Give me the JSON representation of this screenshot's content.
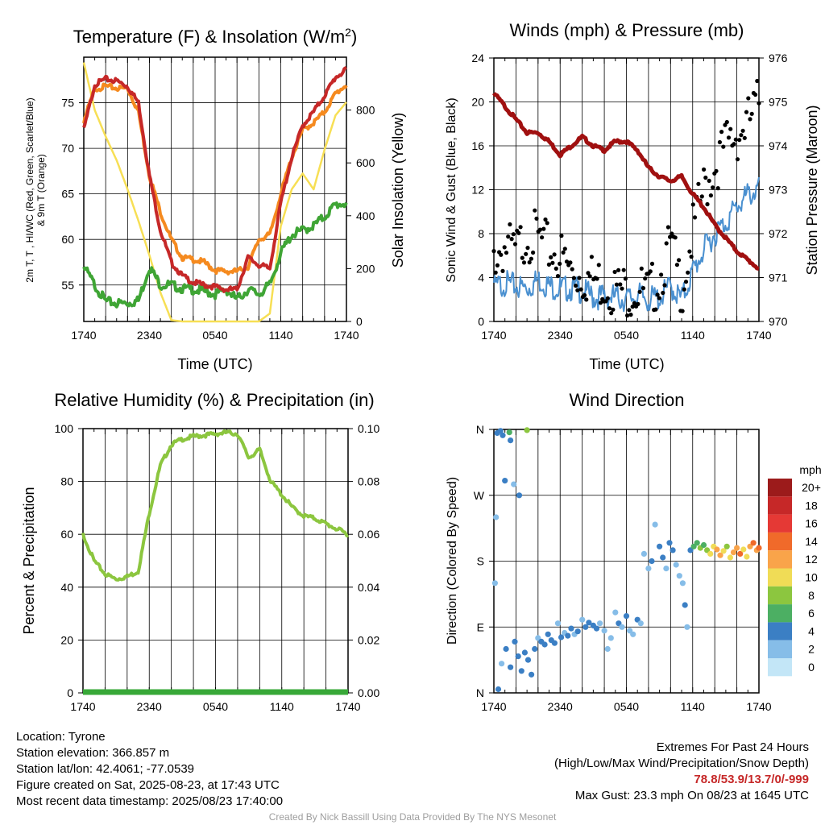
{
  "colors": {
    "temp_red": "#c62828",
    "dewpoint_green": "#3fa535",
    "hiwc_scarlet": "#d32f2f",
    "temp9m_orange": "#f58a1f",
    "solar_yellow": "#f7df55",
    "wind_blue": "#4a90d0",
    "gust_black": "#000000",
    "pressure_maroon": "#a01010",
    "rh_green": "#8cc63f",
    "precip_green": "#38a838"
  },
  "time_ticks": [
    "1740",
    "2340",
    "0540",
    "1140",
    "1740"
  ],
  "chart_data": [
    {
      "type": "line",
      "title": "Temperature (F) & Insolation (W/m²)",
      "title_main": "Temperature (F) & Insolation (W/m",
      "title_sup": "2",
      "title_end": ")",
      "xlabel": "Time (UTC)",
      "ylabel_line1": "2m T, T , HI/WC (Red, Green, Scarlet/Blue)",
      "ylabel_line2": "& 9m T (Orange)",
      "ylabel_right": "Solar Insolation (Yellow)",
      "ylim": [
        51,
        80
      ],
      "ylim_right": [
        0,
        1000
      ],
      "yticks": [
        55,
        60,
        65,
        70,
        75
      ],
      "yticks_right": [
        0,
        200,
        400,
        600,
        800
      ],
      "x": [
        0,
        1,
        2,
        3,
        4,
        5,
        6,
        7,
        8,
        9,
        10,
        11,
        12,
        13,
        14,
        15,
        16,
        17,
        18,
        19,
        20,
        21,
        22,
        23,
        24
      ],
      "series": [
        {
          "key": "solar",
          "values": [
            980,
            800,
            700,
            610,
            500,
            380,
            250,
            110,
            5,
            0,
            0,
            0,
            0,
            0,
            0,
            0,
            0,
            30,
            360,
            500,
            560,
            500,
            650,
            780,
            830
          ]
        },
        {
          "key": "temp9m",
          "values": [
            73,
            76.5,
            76.8,
            76.6,
            76.6,
            74,
            67,
            63,
            60,
            58,
            57.8,
            57.5,
            56.6,
            56.5,
            56.5,
            57,
            60,
            60.5,
            65,
            69,
            72,
            72.8,
            74,
            76,
            77
          ]
        },
        {
          "key": "dewpoint",
          "values": [
            57,
            55,
            53.2,
            53,
            53,
            53.3,
            57,
            55,
            55,
            54.6,
            54.5,
            54.3,
            54,
            54.5,
            53.4,
            54.5,
            54,
            55,
            58.5,
            60.5,
            61,
            61.5,
            62.5,
            63.8,
            64
          ]
        },
        {
          "key": "temp",
          "values": [
            72,
            77,
            77.6,
            77.4,
            76.8,
            75,
            67,
            61,
            57.5,
            56,
            55.3,
            55,
            54.8,
            54.5,
            54.5,
            58,
            57.2,
            56.8,
            64,
            69,
            72.5,
            74,
            75.8,
            77.8,
            78.6
          ]
        }
      ]
    },
    {
      "type": "line",
      "title": "Winds (mph) & Pressure (mb)",
      "xlabel": "Time (UTC)",
      "ylabel": "Sonic Wind & Gust (Blue, Black)",
      "ylabel_right": "Station Pressure (Maroon)",
      "ylim": [
        0,
        24
      ],
      "ylim_right": [
        970,
        976
      ],
      "yticks": [
        0,
        4,
        8,
        12,
        16,
        20,
        24
      ],
      "yticks_right": [
        970,
        971,
        972,
        973,
        974,
        975,
        976
      ],
      "x": [
        0,
        1,
        2,
        3,
        4,
        5,
        6,
        7,
        8,
        9,
        10,
        11,
        12,
        13,
        14,
        15,
        16,
        17,
        18,
        19,
        20,
        21,
        22,
        23,
        24
      ],
      "series": [
        {
          "key": "wind",
          "values": [
            3,
            3.5,
            3.2,
            3,
            3.8,
            3.2,
            3,
            3,
            2.8,
            2.2,
            2.3,
            2.2,
            2,
            2.4,
            2,
            2.2,
            3.2,
            2,
            4.5,
            6.5,
            8,
            9,
            10.5,
            11.5,
            12
          ]
        },
        {
          "key": "gust",
          "values": [
            6,
            6.8,
            6.2,
            8,
            7.5,
            6.5,
            6,
            4.5,
            4.2,
            3.8,
            3.5,
            3,
            2.8,
            3,
            2.4,
            4,
            7,
            3,
            8,
            12,
            14,
            16,
            17,
            18,
            20
          ]
        },
        {
          "key": "pressure",
          "values": [
            975.2,
            974.9,
            974.6,
            974.3,
            974.3,
            974.1,
            973.8,
            974.0,
            974.2,
            974.0,
            973.9,
            974.1,
            974.1,
            973.9,
            973.5,
            973.3,
            973.2,
            973.3,
            972.9,
            972.6,
            972.2,
            971.9,
            971.6,
            971.4,
            971.2
          ]
        }
      ]
    },
    {
      "type": "line",
      "title": "Relative Humidity (%) & Precipitation (in)",
      "xlabel": "",
      "ylabel": "Percent & Precipitation",
      "ylim": [
        0,
        100
      ],
      "ylim_right": [
        0,
        0.1
      ],
      "yticks": [
        0,
        20,
        40,
        60,
        80,
        100
      ],
      "yticks_right": [
        "0.00",
        "0.02",
        "0.04",
        "0.06",
        "0.08",
        "0.10"
      ],
      "x": [
        0,
        1,
        2,
        3,
        4,
        5,
        6,
        7,
        8,
        9,
        10,
        11,
        12,
        13,
        14,
        15,
        16,
        17,
        18,
        19,
        20,
        21,
        22,
        23,
        24
      ],
      "series": [
        {
          "key": "rh",
          "values": [
            60,
            50,
            45,
            43,
            44,
            46,
            68,
            86,
            94,
            96,
            97,
            97.5,
            98,
            98.5,
            98,
            89,
            92,
            80,
            75,
            70,
            67,
            66,
            64,
            62,
            60
          ]
        },
        {
          "key": "precip",
          "values": [
            0,
            0,
            0,
            0,
            0,
            0,
            0,
            0,
            0,
            0,
            0,
            0,
            0,
            0,
            0,
            0,
            0,
            0,
            0,
            0,
            0,
            0,
            0,
            0,
            0
          ]
        }
      ]
    },
    {
      "type": "scatter",
      "title": "Wind Direction",
      "xlabel": "",
      "ylabel": "Direction (Colored By Speed)",
      "yticks": [
        "N",
        "E",
        "S",
        "W",
        "N"
      ],
      "legend_title": "mph",
      "legend_labels": [
        "20+",
        "18",
        "16",
        "14",
        "12",
        "10",
        "8",
        "6",
        "4",
        "2",
        "0"
      ],
      "legend_colors": [
        "#9c1b1b",
        "#c62828",
        "#e53935",
        "#f06a2a",
        "#f9a44a",
        "#f0dc56",
        "#8cc63f",
        "#4caf63",
        "#3b7fc4",
        "#86bde8",
        "#c3e6f7"
      ],
      "points": [
        {
          "t": 0.3,
          "d": 355,
          "s": 4
        },
        {
          "t": 0.6,
          "d": 358,
          "s": 3
        },
        {
          "t": 0.8,
          "d": 352,
          "s": 4
        },
        {
          "t": 1.4,
          "d": 356,
          "s": 5
        },
        {
          "t": 1.5,
          "d": 345,
          "s": 3
        },
        {
          "t": 3.0,
          "d": 359,
          "s": 7
        },
        {
          "t": 1.0,
          "d": 290,
          "s": 3
        },
        {
          "t": 1.8,
          "d": 285,
          "s": 2
        },
        {
          "t": 2.3,
          "d": 270,
          "s": 3
        },
        {
          "t": 0.2,
          "d": 240,
          "s": 2
        },
        {
          "t": 0.1,
          "d": 150,
          "s": 2
        },
        {
          "t": 0.4,
          "d": 5,
          "s": 3
        },
        {
          "t": 0.7,
          "d": 40,
          "s": 2
        },
        {
          "t": 1.1,
          "d": 60,
          "s": 3
        },
        {
          "t": 1.5,
          "d": 35,
          "s": 4
        },
        {
          "t": 1.9,
          "d": 70,
          "s": 3
        },
        {
          "t": 2.2,
          "d": 50,
          "s": 4
        },
        {
          "t": 2.5,
          "d": 30,
          "s": 3
        },
        {
          "t": 2.8,
          "d": 55,
          "s": 4
        },
        {
          "t": 3.1,
          "d": 45,
          "s": 4
        },
        {
          "t": 3.4,
          "d": 25,
          "s": 4
        },
        {
          "t": 3.7,
          "d": 60,
          "s": 3
        },
        {
          "t": 4.0,
          "d": 75,
          "s": 2
        },
        {
          "t": 4.3,
          "d": 70,
          "s": 4
        },
        {
          "t": 4.6,
          "d": 66,
          "s": 4
        },
        {
          "t": 4.9,
          "d": 80,
          "s": 3
        },
        {
          "t": 5.2,
          "d": 72,
          "s": 4
        },
        {
          "t": 5.5,
          "d": 68,
          "s": 3
        },
        {
          "t": 5.8,
          "d": 95,
          "s": 2
        },
        {
          "t": 6.1,
          "d": 76,
          "s": 3
        },
        {
          "t": 6.4,
          "d": 82,
          "s": 2
        },
        {
          "t": 6.7,
          "d": 78,
          "s": 3
        },
        {
          "t": 7.0,
          "d": 88,
          "s": 3
        },
        {
          "t": 7.3,
          "d": 80,
          "s": 2
        },
        {
          "t": 7.6,
          "d": 84,
          "s": 3
        },
        {
          "t": 8.0,
          "d": 100,
          "s": 2
        },
        {
          "t": 8.3,
          "d": 90,
          "s": 3
        },
        {
          "t": 8.6,
          "d": 96,
          "s": 3
        },
        {
          "t": 9.0,
          "d": 92,
          "s": 4
        },
        {
          "t": 9.3,
          "d": 88,
          "s": 3
        },
        {
          "t": 9.6,
          "d": 95,
          "s": 2
        },
        {
          "t": 10.0,
          "d": 85,
          "s": 2
        },
        {
          "t": 10.3,
          "d": 60,
          "s": 1
        },
        {
          "t": 10.6,
          "d": 75,
          "s": 2
        },
        {
          "t": 11.0,
          "d": 110,
          "s": 2
        },
        {
          "t": 11.3,
          "d": 95,
          "s": 3
        },
        {
          "t": 11.6,
          "d": 90,
          "s": 2
        },
        {
          "t": 12.0,
          "d": 105,
          "s": 3
        },
        {
          "t": 12.3,
          "d": 85,
          "s": 2
        },
        {
          "t": 12.6,
          "d": 80,
          "s": 1
        },
        {
          "t": 13.0,
          "d": 100,
          "s": 3
        },
        {
          "t": 13.3,
          "d": 95,
          "s": 2
        },
        {
          "t": 13.6,
          "d": 190,
          "s": 2
        },
        {
          "t": 14.0,
          "d": 170,
          "s": 2
        },
        {
          "t": 14.3,
          "d": 180,
          "s": 3
        },
        {
          "t": 14.6,
          "d": 230,
          "s": 2
        },
        {
          "t": 15.0,
          "d": 200,
          "s": 3
        },
        {
          "t": 15.3,
          "d": 185,
          "s": 3
        },
        {
          "t": 15.6,
          "d": 170,
          "s": 2
        },
        {
          "t": 15.9,
          "d": 205,
          "s": 4
        },
        {
          "t": 16.2,
          "d": 195,
          "s": 3
        },
        {
          "t": 16.5,
          "d": 175,
          "s": 2
        },
        {
          "t": 16.8,
          "d": 160,
          "s": 2
        },
        {
          "t": 17.1,
          "d": 150,
          "s": 2
        },
        {
          "t": 17.3,
          "d": 120,
          "s": 3
        },
        {
          "t": 17.5,
          "d": 90,
          "s": 2
        },
        {
          "t": 17.8,
          "d": 195,
          "s": 4
        },
        {
          "t": 18.1,
          "d": 200,
          "s": 5
        },
        {
          "t": 18.4,
          "d": 205,
          "s": 6
        },
        {
          "t": 18.7,
          "d": 198,
          "s": 7
        },
        {
          "t": 19.0,
          "d": 202,
          "s": 6
        },
        {
          "t": 19.3,
          "d": 195,
          "s": 8
        },
        {
          "t": 19.6,
          "d": 190,
          "s": 9
        },
        {
          "t": 19.9,
          "d": 200,
          "s": 10
        },
        {
          "t": 20.2,
          "d": 196,
          "s": 11
        },
        {
          "t": 20.5,
          "d": 188,
          "s": 12
        },
        {
          "t": 20.8,
          "d": 194,
          "s": 10
        },
        {
          "t": 21.1,
          "d": 200,
          "s": 8
        },
        {
          "t": 21.4,
          "d": 185,
          "s": 9
        },
        {
          "t": 21.7,
          "d": 192,
          "s": 11
        },
        {
          "t": 22.0,
          "d": 198,
          "s": 12
        },
        {
          "t": 22.3,
          "d": 190,
          "s": 13
        },
        {
          "t": 22.6,
          "d": 196,
          "s": 10
        },
        {
          "t": 22.9,
          "d": 186,
          "s": 9
        },
        {
          "t": 23.2,
          "d": 200,
          "s": 12
        },
        {
          "t": 23.5,
          "d": 205,
          "s": 13
        },
        {
          "t": 23.8,
          "d": 195,
          "s": 12
        },
        {
          "t": 24.0,
          "d": 198,
          "s": 14
        }
      ]
    }
  ],
  "info": {
    "location": "Location: Tyrone",
    "elevation": "Station elevation: 366.857 m",
    "latlon": "Station lat/lon: 42.4061; -77.0539",
    "created": "Figure created on Sat, 2025-08-23, at 17:43 UTC",
    "recent": "Most recent data timestamp: 2025/08/23 17:40:00"
  },
  "extremes": {
    "title": "Extremes For Past 24 Hours",
    "subtitle": "(High/Low/Max Wind/Precipitation/Snow Depth)",
    "values": "78.8/53.9/13.7/0/-999",
    "max_gust": "Max Gust: 23.3 mph On 08/23 at 1645 UTC"
  },
  "credit": "Created By Nick Bassill Using Data Provided By The NYS Mesonet"
}
